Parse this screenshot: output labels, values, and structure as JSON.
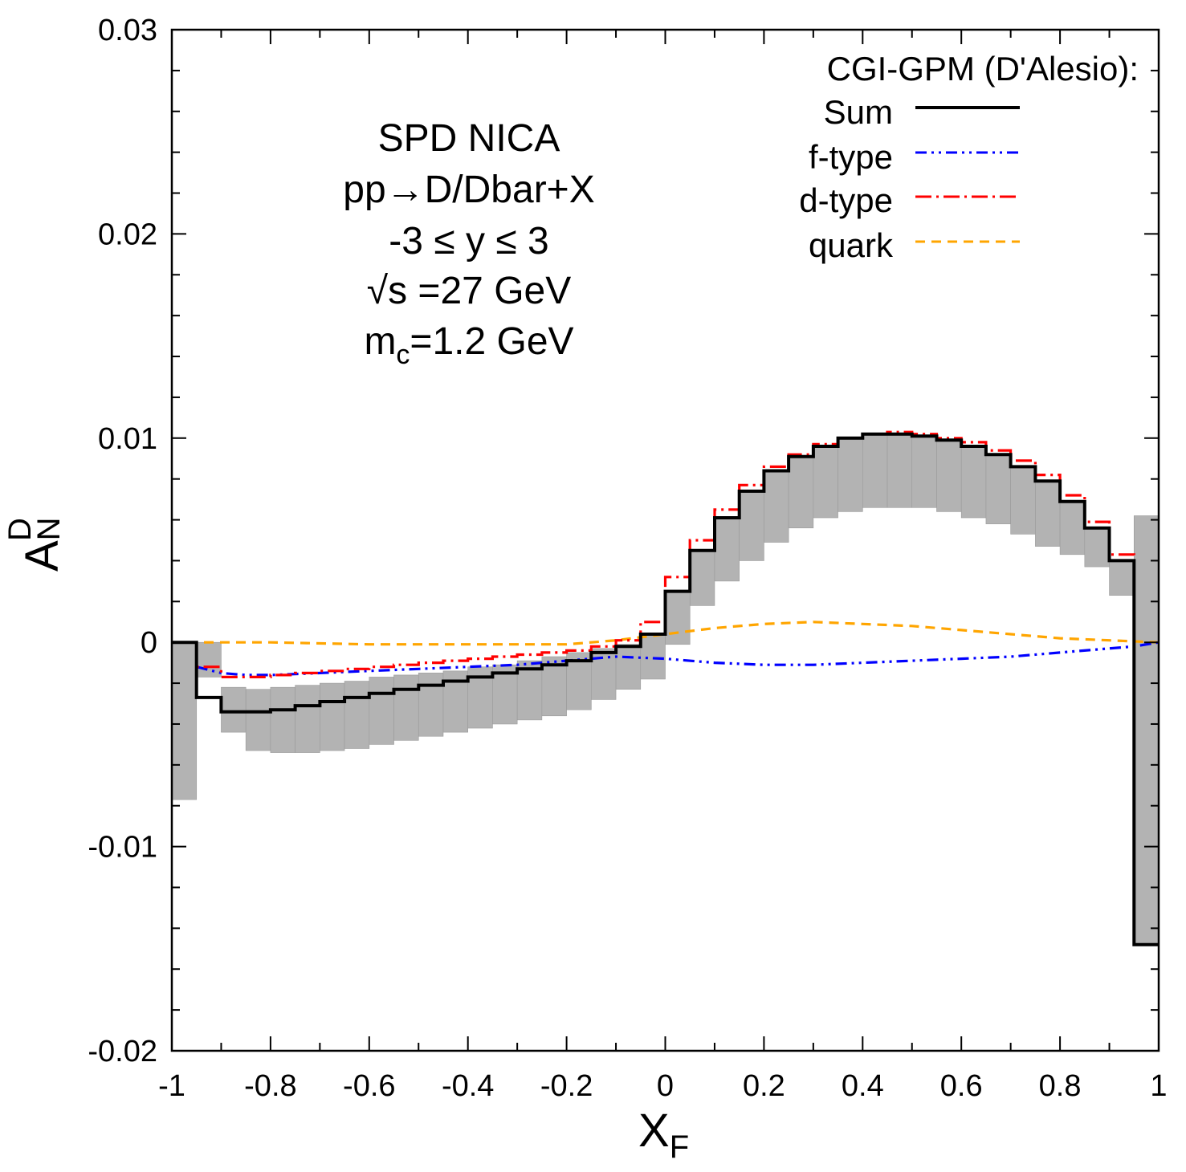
{
  "chart_data": {
    "type": "line",
    "xlabel": "X",
    "xlabel_sub": "F",
    "ylabel": "A",
    "ylabel_sub": "N",
    "ylabel_sup": "D",
    "xlim": [
      -1,
      1
    ],
    "ylim": [
      -0.02,
      0.03
    ],
    "x_ticks": [
      -1,
      -0.8,
      -0.6,
      -0.4,
      -0.2,
      0,
      0.2,
      0.4,
      0.6,
      0.8,
      1
    ],
    "x_tick_labels": [
      "-1",
      "-0.8",
      "-0.6",
      "-0.4",
      "-0.2",
      "0",
      "0.2",
      "0.4",
      "0.6",
      "0.8",
      "1"
    ],
    "y_ticks": [
      -0.02,
      -0.01,
      0,
      0.01,
      0.02,
      0.03
    ],
    "y_tick_labels": [
      "-0.02",
      "-0.01",
      "0",
      "0.01",
      "0.02",
      "0.03"
    ],
    "annotation": {
      "line1": "SPD NICA",
      "line2": "pp→D/Dbar+X",
      "line3": "-3 ≤ y ≤ 3",
      "line4": "√s =27 GeV",
      "line5_main": "m",
      "line5_sub": "c",
      "line5_rest": "=1.2 GeV"
    },
    "legend": {
      "title": "CGI-GPM (D'Alesio):",
      "placement": "top-right",
      "entries": [
        "Sum",
        "f-type",
        "d-type",
        "quark"
      ]
    },
    "bin_edges": [
      -1,
      -0.95,
      -0.9,
      -0.85,
      -0.8,
      -0.75,
      -0.7,
      -0.65,
      -0.6,
      -0.55,
      -0.5,
      -0.45,
      -0.4,
      -0.35,
      -0.3,
      -0.25,
      -0.2,
      -0.15,
      -0.1,
      -0.05,
      0,
      0.05,
      0.1,
      0.15,
      0.2,
      0.25,
      0.3,
      0.35,
      0.4,
      0.45,
      0.5,
      0.55,
      0.6,
      0.65,
      0.7,
      0.75,
      0.8,
      0.85,
      0.9,
      0.95,
      1
    ],
    "series": [
      {
        "name": "Sum",
        "color": "#000000",
        "style": "solid",
        "values": [
          0,
          -0.0027,
          -0.0034,
          -0.0034,
          -0.0033,
          -0.0031,
          -0.0029,
          -0.0027,
          -0.0025,
          -0.0023,
          -0.0021,
          -0.0019,
          -0.0017,
          -0.0015,
          -0.0013,
          -0.0011,
          -0.0009,
          -0.0005,
          -0.0002,
          0.0004,
          0.0025,
          0.0045,
          0.0061,
          0.0074,
          0.0084,
          0.0091,
          0.0096,
          0.01,
          0.0102,
          0.0102,
          0.0101,
          0.0099,
          0.0096,
          0.0092,
          0.0086,
          0.0079,
          0.0069,
          0.0056,
          0.004,
          -0.0148
        ]
      },
      {
        "name": "d-type",
        "color": "#ff0000",
        "style": "dash-dot",
        "values": [
          0,
          -0.0012,
          -0.0017,
          -0.0017,
          -0.0016,
          -0.0015,
          -0.0014,
          -0.0013,
          -0.0012,
          -0.0011,
          -0.001,
          -0.0009,
          -0.0008,
          -0.0007,
          -0.0006,
          -0.0005,
          -0.0004,
          -0.0002,
          0.0001,
          0.001,
          0.0032,
          0.005,
          0.0065,
          0.0077,
          0.0086,
          0.0092,
          0.0097,
          0.01,
          0.0102,
          0.0103,
          0.0102,
          0.01,
          0.0098,
          0.0094,
          0.0089,
          0.0082,
          0.0072,
          0.0059,
          0.0043,
          -0.0148
        ]
      },
      {
        "name": "f-type",
        "color": "#0000ff",
        "style": "dash-dot-dot",
        "x": [
          -0.95,
          -0.9,
          -0.85,
          -0.8,
          -0.7,
          -0.6,
          -0.5,
          -0.4,
          -0.3,
          -0.2,
          -0.1,
          0,
          0.1,
          0.2,
          0.3,
          0.4,
          0.5,
          0.6,
          0.7,
          0.8,
          0.9,
          0.95,
          1
        ],
        "values": [
          -0.0012,
          -0.0015,
          -0.0016,
          -0.0016,
          -0.0015,
          -0.0014,
          -0.0013,
          -0.0012,
          -0.0011,
          -0.0009,
          -0.0007,
          -0.0008,
          -0.001,
          -0.0011,
          -0.0011,
          -0.001,
          -0.0009,
          -0.0008,
          -0.0007,
          -0.0005,
          -0.0003,
          -0.0002,
          0
        ]
      },
      {
        "name": "quark",
        "color": "#ffa500",
        "style": "dashed",
        "x": [
          -1,
          -0.8,
          -0.6,
          -0.4,
          -0.2,
          -0.1,
          0,
          0.1,
          0.2,
          0.3,
          0.4,
          0.5,
          0.6,
          0.7,
          0.8,
          0.9,
          1
        ],
        "values": [
          0,
          0,
          -0.0001,
          -0.0001,
          -0.0001,
          0.0001,
          0.0004,
          0.0007,
          0.0009,
          0.001,
          0.0009,
          0.0008,
          0.0006,
          0.0004,
          0.0002,
          0.0001,
          0
        ]
      }
    ],
    "band": {
      "name": "uncertainty",
      "color": "#b3b3b3",
      "lower": [
        -0.0077,
        -0.0017,
        -0.0044,
        -0.0053,
        -0.0054,
        -0.0054,
        -0.0053,
        -0.0052,
        -0.005,
        -0.0048,
        -0.0046,
        -0.0044,
        -0.0042,
        -0.004,
        -0.0038,
        -0.0036,
        -0.0033,
        -0.0028,
        -0.0023,
        -0.0018,
        -0.0001,
        0.0018,
        0.003,
        0.004,
        0.0049,
        0.0056,
        0.0061,
        0.0064,
        0.0066,
        0.0066,
        0.0066,
        0.0064,
        0.0061,
        0.0058,
        0.0053,
        0.0047,
        0.0043,
        0.0037,
        0.0023,
        -0.0148
      ],
      "upper": [
        0,
        0,
        -0.0022,
        -0.0023,
        -0.0022,
        -0.0021,
        -0.002,
        -0.0019,
        -0.0017,
        -0.0016,
        -0.0015,
        -0.0014,
        -0.0012,
        -0.0011,
        -0.0009,
        -0.0007,
        -0.0005,
        -0.0003,
        -0.0001,
        0.0004,
        0.0025,
        0.0045,
        0.0061,
        0.0074,
        0.0084,
        0.0091,
        0.0096,
        0.01,
        0.0102,
        0.0102,
        0.0101,
        0.0099,
        0.0096,
        0.0092,
        0.0086,
        0.0079,
        0.0069,
        0.0056,
        0.004,
        0.0062
      ]
    }
  }
}
